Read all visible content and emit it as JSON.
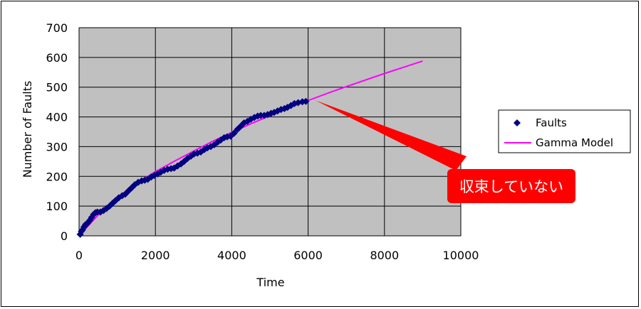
{
  "chart_data": {
    "type": "scatter",
    "xlabel": "Time",
    "ylabel": "Number of Faults",
    "xlim": [
      0,
      10000
    ],
    "ylim": [
      0,
      700
    ],
    "xticks": [
      0,
      2000,
      4000,
      6000,
      8000,
      10000
    ],
    "yticks": [
      0,
      100,
      200,
      300,
      400,
      500,
      600,
      700
    ],
    "grid": true,
    "plot_background": "#c0c0c0",
    "legend_position": "right",
    "series": [
      {
        "name": "Faults",
        "kind": "scatter",
        "marker": "diamond",
        "color": "#000080",
        "x": [
          30,
          60,
          90,
          130,
          170,
          220,
          280,
          330,
          380,
          430,
          480,
          560,
          640,
          720,
          800,
          880,
          950,
          1040,
          1130,
          1210,
          1300,
          1380,
          1460,
          1550,
          1640,
          1720,
          1800,
          1890,
          1970,
          2060,
          2140,
          2230,
          2320,
          2410,
          2490,
          2580,
          2670,
          2750,
          2840,
          2930,
          3010,
          3100,
          3190,
          3280,
          3360,
          3450,
          3540,
          3630,
          3710,
          3800,
          3880,
          3970,
          4060,
          4150,
          4230,
          4320,
          4410,
          4500,
          4590,
          4680,
          4760,
          4850,
          4940,
          5030,
          5110,
          5200,
          5290,
          5380,
          5460,
          5550,
          5640,
          5740,
          5850,
          5940
        ],
        "y": [
          5,
          15,
          20,
          30,
          38,
          42,
          52,
          62,
          72,
          78,
          80,
          80,
          85,
          92,
          100,
          110,
          118,
          128,
          135,
          140,
          152,
          162,
          172,
          180,
          185,
          187,
          190,
          198,
          203,
          208,
          214,
          220,
          224,
          226,
          228,
          235,
          242,
          250,
          260,
          268,
          275,
          278,
          282,
          290,
          296,
          300,
          306,
          315,
          322,
          330,
          333,
          335,
          345,
          358,
          368,
          380,
          385,
          392,
          398,
          403,
          405,
          405,
          408,
          412,
          415,
          420,
          425,
          428,
          432,
          438,
          445,
          448,
          451,
          452
        ]
      },
      {
        "name": "Gamma Model",
        "kind": "line",
        "color": "#ff00ff",
        "x": [
          0,
          500,
          1000,
          1500,
          2000,
          2500,
          3000,
          3500,
          4000,
          4500,
          5000,
          5500,
          6000,
          6500,
          7000,
          7500,
          8000,
          8500,
          9000
        ],
        "y": [
          0,
          70,
          128,
          176,
          216,
          251,
          285,
          318,
          348,
          377,
          404,
          430,
          455,
          479,
          502,
          524,
          546,
          567,
          588
        ]
      }
    ]
  },
  "callout": {
    "text": "収束していない",
    "color": "#ff0000",
    "points_to_x": 6200,
    "points_to_y": 455
  }
}
